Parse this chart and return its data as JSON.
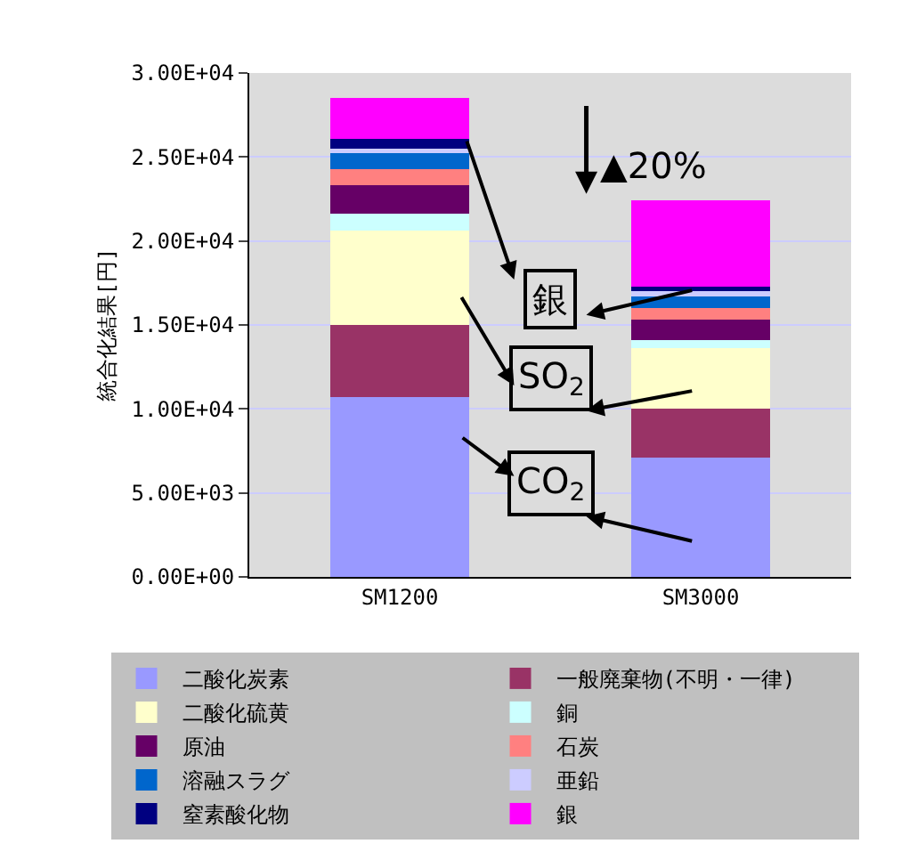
{
  "chart_data": {
    "type": "bar",
    "stacked": true,
    "ylabel": "統合化結果[円]",
    "categories": [
      "SM1200",
      "SM3000"
    ],
    "ylim": [
      0,
      30000
    ],
    "yticks": [
      {
        "value": 0,
        "label": "0.00E+00"
      },
      {
        "value": 5000,
        "label": "5.00E+03"
      },
      {
        "value": 10000,
        "label": "1.00E+04"
      },
      {
        "value": 15000,
        "label": "1.50E+04"
      },
      {
        "value": 20000,
        "label": "2.00E+04"
      },
      {
        "value": 25000,
        "label": "2.50E+04"
      },
      {
        "value": 30000,
        "label": "3.00E+04"
      }
    ],
    "grid": "y",
    "legend": "bottom",
    "series": [
      {
        "name": "二酸化炭素",
        "color": "#9999ff",
        "values": [
          10700,
          7100
        ]
      },
      {
        "name": "一般廃棄物(不明・一律)",
        "color": "#993366",
        "values": [
          4300,
          2900
        ]
      },
      {
        "name": "二酸化硫黄",
        "color": "#ffffcc",
        "values": [
          5600,
          3600
        ]
      },
      {
        "name": "銅",
        "color": "#ccffff",
        "values": [
          1000,
          500
        ]
      },
      {
        "name": "原油",
        "color": "#660066",
        "values": [
          1700,
          1200
        ]
      },
      {
        "name": "石炭",
        "color": "#ff8080",
        "values": [
          1000,
          700
        ]
      },
      {
        "name": "溶融スラグ",
        "color": "#0066cc",
        "values": [
          1000,
          700
        ]
      },
      {
        "name": "亜鉛",
        "color": "#ccccff",
        "values": [
          200,
          300
        ]
      },
      {
        "name": "窒素酸化物",
        "color": "#000080",
        "values": [
          600,
          300
        ]
      },
      {
        "name": "銀",
        "color": "#ff00ff",
        "values": [
          2400,
          5100
        ]
      }
    ],
    "annotations": [
      "▲20%",
      "銀",
      "SO$_{2}$",
      "CO$_{2}$"
    ]
  }
}
